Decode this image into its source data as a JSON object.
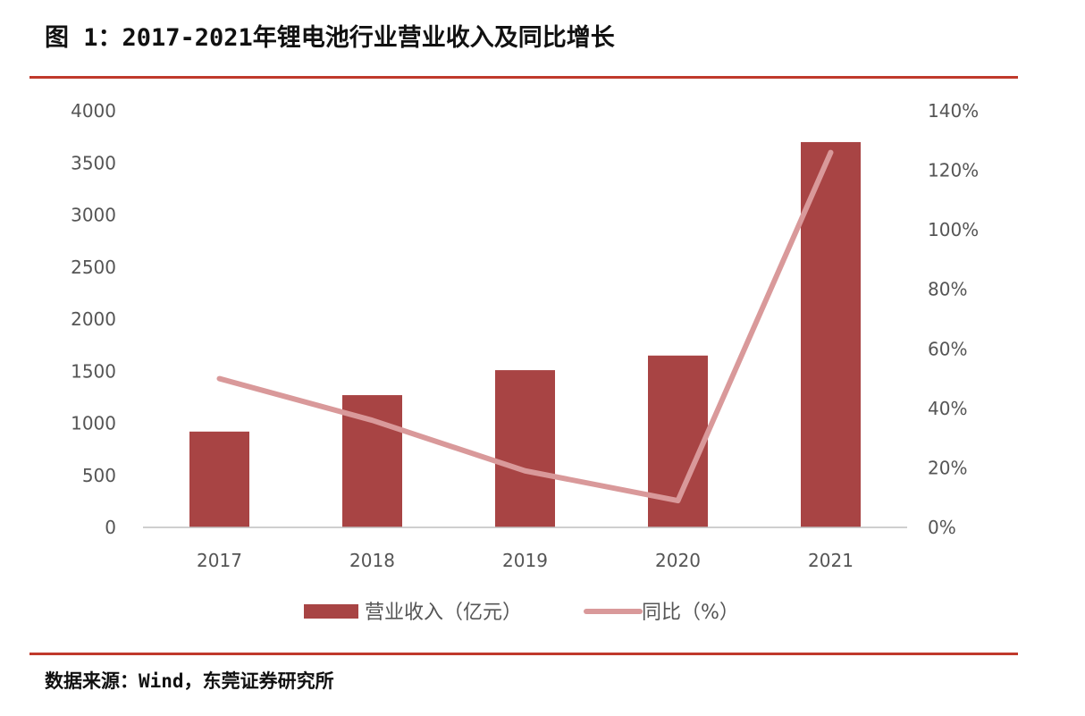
{
  "header": {
    "title": "图 1：2017-2021年锂电池行业营业收入及同比增长"
  },
  "footer": {
    "source": "数据来源：Wind，东莞证券研究所"
  },
  "colors": {
    "rule": "#c0392b",
    "bar": "#a84444",
    "line": "#d9999a",
    "axis": "#bfbfbf",
    "tick_text": "#595959"
  },
  "chart_data": {
    "type": "bar",
    "categories": [
      "2017",
      "2018",
      "2019",
      "2020",
      "2021"
    ],
    "series": [
      {
        "name": "营业收入（亿元）",
        "kind": "bar",
        "axis": "left",
        "values": [
          920,
          1270,
          1510,
          1650,
          3700
        ]
      },
      {
        "name": "同比（%）",
        "kind": "line",
        "axis": "right",
        "values": [
          50,
          36,
          19,
          9,
          126
        ]
      }
    ],
    "y_left": {
      "ylim": [
        0,
        4000
      ],
      "ticks": [
        "0",
        "500",
        "1000",
        "1500",
        "2000",
        "2500",
        "3000",
        "3500",
        "4000"
      ]
    },
    "y_right": {
      "ylim": [
        0,
        140
      ],
      "ticks": [
        "0%",
        "20%",
        "40%",
        "60%",
        "80%",
        "100%",
        "120%",
        "140%"
      ]
    },
    "grid": false,
    "legend": "bottom",
    "legend_items": [
      "营业收入（亿元）",
      "同比（%）"
    ]
  }
}
